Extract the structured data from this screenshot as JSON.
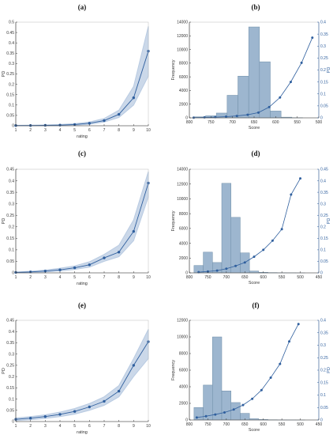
{
  "chart_data": [
    {
      "panel": "(a)",
      "type": "line",
      "xlabel": "rating",
      "ylabel": "PD",
      "xlim": [
        1,
        10
      ],
      "ylim": [
        0,
        0.5
      ],
      "xticks": [
        "1",
        "2",
        "3",
        "4",
        "5",
        "6",
        "7",
        "8",
        "9",
        "10"
      ],
      "yticks": [
        "0",
        "0.05",
        "0.1",
        "0.15",
        "0.2",
        "0.25",
        "0.3",
        "0.35",
        "0.4",
        "0.45",
        "0.5"
      ],
      "grid": false,
      "series": [
        {
          "x": [
            1,
            2,
            3,
            4,
            5,
            6,
            7,
            8,
            9,
            10
          ],
          "values": [
            0.001,
            0.001,
            0.002,
            0.003,
            0.006,
            0.012,
            0.025,
            0.055,
            0.135,
            0.36
          ],
          "band_lower": [
            0.0,
            0.0,
            0.0,
            0.001,
            0.003,
            0.007,
            0.018,
            0.04,
            0.1,
            0.24
          ],
          "band_upper": [
            0.002,
            0.003,
            0.004,
            0.006,
            0.01,
            0.018,
            0.035,
            0.075,
            0.19,
            0.48
          ]
        }
      ]
    },
    {
      "panel": "(b)",
      "type": "bar",
      "xlabel": "Score",
      "ylabel": "Frequency",
      "y2label": "PD",
      "xlim": [
        800,
        500
      ],
      "ylim": [
        0,
        14000
      ],
      "y2lim": [
        0,
        0.4
      ],
      "xticks": [
        "800",
        "750",
        "700",
        "650",
        "600",
        "550",
        "500"
      ],
      "yticks": [
        "0",
        "2000",
        "4000",
        "6000",
        "8000",
        "10000",
        "12000",
        "14000"
      ],
      "y2ticks": [
        "0",
        "0.05",
        "0.1",
        "0.15",
        "0.2",
        "0.25",
        "0.3",
        "0.35",
        "0.4"
      ],
      "bin_width": 25,
      "bars": [
        {
          "x": 775,
          "value": 150
        },
        {
          "x": 750,
          "value": 300
        },
        {
          "x": 725,
          "value": 700
        },
        {
          "x": 700,
          "value": 3300
        },
        {
          "x": 675,
          "value": 6100
        },
        {
          "x": 650,
          "value": 13300
        },
        {
          "x": 625,
          "value": 8200
        },
        {
          "x": 600,
          "value": 1000
        },
        {
          "x": 575,
          "value": 100
        },
        {
          "x": 550,
          "value": 30
        }
      ],
      "pd_curve": {
        "x": [
          790,
          765,
          740,
          715,
          690,
          665,
          640,
          615,
          590,
          565,
          540,
          515
        ],
        "y": [
          0.001,
          0.002,
          0.003,
          0.005,
          0.008,
          0.013,
          0.022,
          0.045,
          0.085,
          0.15,
          0.23,
          0.335
        ]
      }
    },
    {
      "panel": "(c)",
      "type": "line",
      "xlabel": "rating",
      "ylabel": "PD",
      "xlim": [
        1,
        10
      ],
      "ylim": [
        0,
        0.45
      ],
      "xticks": [
        "1",
        "2",
        "3",
        "4",
        "5",
        "6",
        "7",
        "8",
        "9",
        "10"
      ],
      "yticks": [
        "0",
        "0.05",
        "0.1",
        "0.15",
        "0.2",
        "0.25",
        "0.3",
        "0.35",
        "0.4",
        "0.45"
      ],
      "grid": false,
      "series": [
        {
          "x": [
            1,
            2,
            3,
            4,
            5,
            6,
            7,
            8,
            9,
            10
          ],
          "values": [
            0.002,
            0.004,
            0.008,
            0.013,
            0.022,
            0.035,
            0.065,
            0.09,
            0.18,
            0.39
          ],
          "band_lower": [
            0.0,
            0.001,
            0.004,
            0.008,
            0.015,
            0.025,
            0.05,
            0.07,
            0.14,
            0.33
          ],
          "band_upper": [
            0.004,
            0.007,
            0.012,
            0.02,
            0.03,
            0.048,
            0.08,
            0.12,
            0.23,
            0.44
          ]
        }
      ]
    },
    {
      "panel": "(d)",
      "type": "bar",
      "xlabel": "Score",
      "ylabel": "Frequency",
      "y2label": "PD",
      "xlim": [
        800,
        450
      ],
      "ylim": [
        0,
        14000
      ],
      "y2lim": [
        0,
        0.45
      ],
      "xticks": [
        "800",
        "750",
        "700",
        "650",
        "600",
        "550",
        "500",
        "450"
      ],
      "yticks": [
        "0",
        "2000",
        "4000",
        "6000",
        "8000",
        "10000",
        "12000",
        "14000"
      ],
      "y2ticks": [
        "0",
        "0.05",
        "0.1",
        "0.15",
        "0.2",
        "0.25",
        "0.3",
        "0.35",
        "0.4",
        "0.45"
      ],
      "bin_width": 25,
      "bars": [
        {
          "x": 775,
          "value": 1000
        },
        {
          "x": 750,
          "value": 2800
        },
        {
          "x": 725,
          "value": 1400
        },
        {
          "x": 700,
          "value": 12100
        },
        {
          "x": 675,
          "value": 7500
        },
        {
          "x": 650,
          "value": 2700
        },
        {
          "x": 625,
          "value": 250
        },
        {
          "x": 600,
          "value": 80
        },
        {
          "x": 575,
          "value": 40
        },
        {
          "x": 550,
          "value": 20
        },
        {
          "x": 525,
          "value": 10
        },
        {
          "x": 500,
          "value": 5
        }
      ],
      "pd_curve": {
        "x": [
          775,
          750,
          725,
          700,
          675,
          650,
          625,
          600,
          575,
          550,
          525,
          500
        ],
        "y": [
          0.003,
          0.006,
          0.01,
          0.018,
          0.03,
          0.045,
          0.07,
          0.1,
          0.14,
          0.19,
          0.34,
          0.41
        ]
      }
    },
    {
      "panel": "(e)",
      "type": "line",
      "xlabel": "rating",
      "ylabel": "PD",
      "xlim": [
        1,
        10
      ],
      "ylim": [
        0,
        0.45
      ],
      "xticks": [
        "1",
        "2",
        "3",
        "4",
        "5",
        "6",
        "7",
        "8",
        "9",
        "10"
      ],
      "yticks": [
        "0",
        "0.05",
        "0.1",
        "0.15",
        "0.2",
        "0.25",
        "0.3",
        "0.35",
        "0.4",
        "0.45"
      ],
      "grid": false,
      "series": [
        {
          "x": [
            1,
            2,
            3,
            4,
            5,
            6,
            7,
            8,
            9,
            10
          ],
          "values": [
            0.01,
            0.015,
            0.022,
            0.032,
            0.045,
            0.065,
            0.09,
            0.135,
            0.25,
            0.355
          ],
          "band_lower": [
            0.004,
            0.008,
            0.014,
            0.022,
            0.033,
            0.05,
            0.072,
            0.11,
            0.2,
            0.28
          ],
          "band_upper": [
            0.016,
            0.022,
            0.03,
            0.042,
            0.058,
            0.08,
            0.11,
            0.16,
            0.28,
            0.41
          ]
        }
      ]
    },
    {
      "panel": "(f)",
      "type": "bar",
      "xlabel": "Score",
      "ylabel": "Frequency",
      "y2label": "PD",
      "xlim": [
        800,
        450
      ],
      "ylim": [
        0,
        12000
      ],
      "y2lim": [
        0,
        0.4
      ],
      "xticks": [
        "800",
        "750",
        "700",
        "650",
        "600",
        "550",
        "500",
        "450"
      ],
      "yticks": [
        "0",
        "2000",
        "4000",
        "6000",
        "8000",
        "10000",
        "12000"
      ],
      "y2ticks": [
        "0",
        "0.05",
        "0.1",
        "0.15",
        "0.2",
        "0.25",
        "0.3",
        "0.35",
        "0.4"
      ],
      "bin_width": 25,
      "bars": [
        {
          "x": 775,
          "value": 1500
        },
        {
          "x": 750,
          "value": 4200
        },
        {
          "x": 725,
          "value": 10000
        },
        {
          "x": 700,
          "value": 3500
        },
        {
          "x": 675,
          "value": 2100
        },
        {
          "x": 650,
          "value": 800
        },
        {
          "x": 625,
          "value": 150
        },
        {
          "x": 600,
          "value": 60
        },
        {
          "x": 575,
          "value": 30
        },
        {
          "x": 550,
          "value": 15
        },
        {
          "x": 525,
          "value": 8
        },
        {
          "x": 500,
          "value": 5
        }
      ],
      "pd_curve": {
        "x": [
          780,
          755,
          730,
          705,
          680,
          655,
          630,
          605,
          580,
          555,
          530,
          505
        ],
        "y": [
          0.01,
          0.015,
          0.022,
          0.03,
          0.042,
          0.06,
          0.085,
          0.12,
          0.17,
          0.225,
          0.315,
          0.385
        ]
      }
    }
  ],
  "colors": {
    "line": "#2f5f9e",
    "band": "#b9cbe2",
    "bar_fill": "#9db6cf",
    "bar_stroke": "#6f8ea8",
    "axis": "#333333",
    "right_axis": "#2f5f9e"
  }
}
